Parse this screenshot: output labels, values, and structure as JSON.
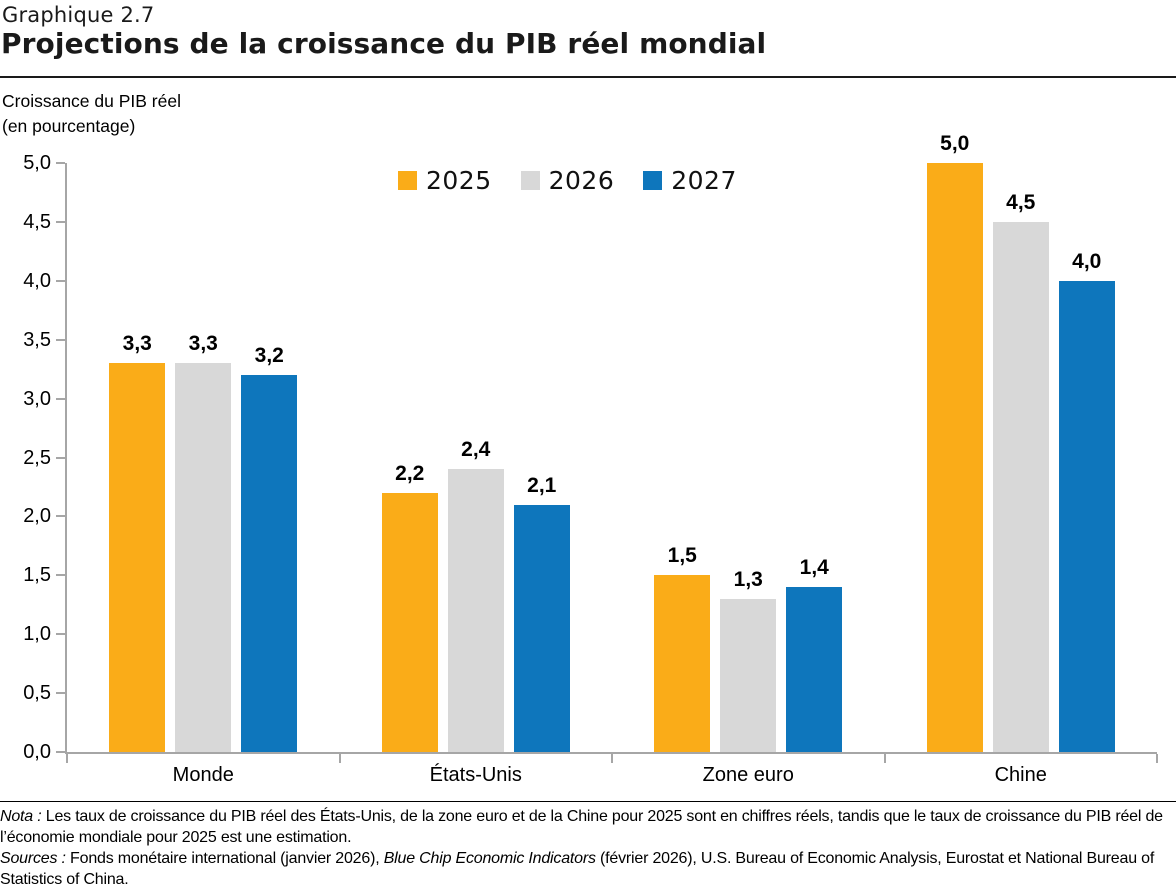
{
  "header": {
    "kicker": "Graphique 2.7",
    "title": "Projections de la croissance du PIB réel mondial"
  },
  "chart_data": {
    "type": "bar",
    "title": "Projections de la croissance du PIB réel mondial",
    "ylabel_line1": "Croissance du PIB réel",
    "ylabel_line2": "(en pourcentage)",
    "categories": [
      "Monde",
      "États-Unis",
      "Zone euro",
      "Chine"
    ],
    "series": [
      {
        "name": "2025",
        "color": "#FAAC18",
        "values": [
          3.3,
          2.2,
          1.5,
          5.0
        ]
      },
      {
        "name": "2026",
        "color": "#D8D8D8",
        "values": [
          3.3,
          2.4,
          1.3,
          4.5
        ]
      },
      {
        "name": "2027",
        "color": "#0E76BC",
        "values": [
          3.2,
          2.1,
          1.4,
          4.0
        ]
      }
    ],
    "ylim": [
      0,
      5
    ],
    "ytick_step": 0.5,
    "decimal_separator": ",",
    "grid": false,
    "legend_position": "top-center",
    "axis_color": "#A6A6A6"
  },
  "notes": {
    "nota_label": "Nota :",
    "nota_text": " Les taux de croissance du PIB réel des États-Unis, de la zone euro et de la Chine pour 2025 sont en chiffres réels, tandis que le taux de croissance du PIB réel de l’économie mondiale pour 2025 est une estimation.",
    "sources_label": "Sources :",
    "sources_text_1": " Fonds monétaire international (janvier 2026), ",
    "sources_italic": "Blue Chip Economic Indicators",
    "sources_text_2": " (février 2026), U.S. Bureau of Economic Analysis, Eurostat et National Bureau of Statistics of China."
  }
}
